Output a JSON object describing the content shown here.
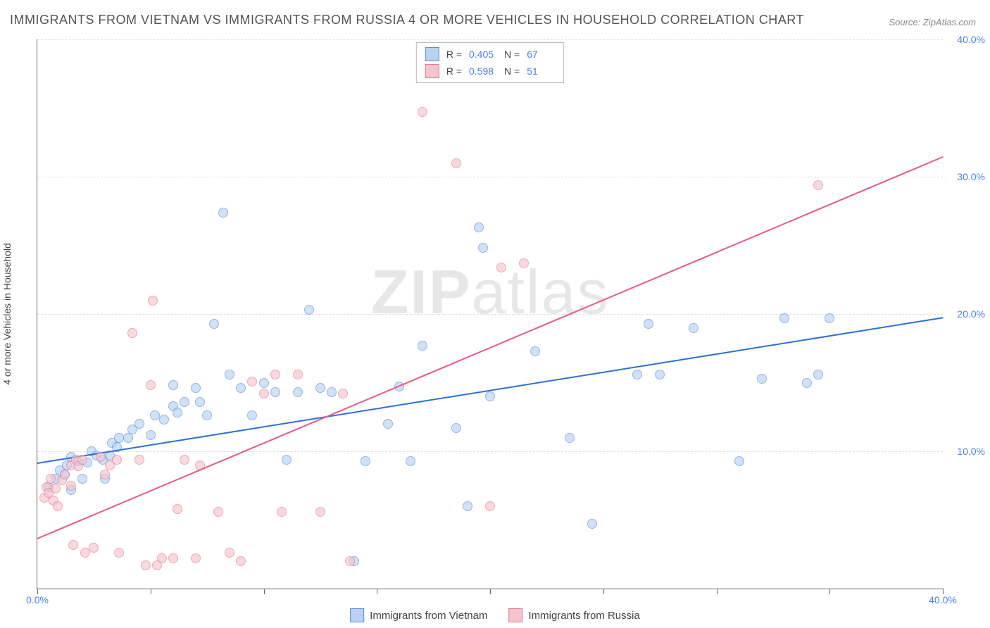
{
  "title": "IMMIGRANTS FROM VIETNAM VS IMMIGRANTS FROM RUSSIA 4 OR MORE VEHICLES IN HOUSEHOLD CORRELATION CHART",
  "source": "Source: ZipAtlas.com",
  "watermark_a": "ZIP",
  "watermark_b": "atlas",
  "ylabel": "4 or more Vehicles in Household",
  "chart": {
    "type": "scatter",
    "xlim": [
      0,
      40
    ],
    "ylim": [
      0,
      40
    ],
    "xticks": [
      0,
      5,
      10,
      15,
      20,
      25,
      30,
      35,
      40
    ],
    "xtick_labels": {
      "0": "0.0%",
      "40": "40.0%"
    },
    "yticks": [
      10,
      20,
      30,
      40
    ],
    "ytick_labels": {
      "10": "10.0%",
      "20": "20.0%",
      "30": "30.0%",
      "40": "40.0%"
    },
    "grid_color": "#dddddd",
    "background_color": "#ffffff"
  },
  "series": [
    {
      "key": "vietnam",
      "label": "Immigrants from Vietnam",
      "fill": "#b9d2f3",
      "stroke": "#5a8fd8",
      "line_color": "#2d6fd6",
      "R": "0.405",
      "N": "67",
      "regression": {
        "x1": 0,
        "y1": 9.2,
        "x2": 40,
        "y2": 19.8
      },
      "points": [
        [
          0.5,
          7.4
        ],
        [
          0.8,
          8.0
        ],
        [
          1.0,
          8.6
        ],
        [
          1.2,
          8.3
        ],
        [
          1.3,
          9.0
        ],
        [
          1.5,
          7.2
        ],
        [
          1.5,
          9.6
        ],
        [
          1.8,
          9.3
        ],
        [
          2.0,
          8.0
        ],
        [
          2.2,
          9.2
        ],
        [
          2.4,
          10.0
        ],
        [
          2.6,
          9.7
        ],
        [
          2.9,
          9.4
        ],
        [
          3.0,
          8.0
        ],
        [
          3.2,
          9.7
        ],
        [
          3.3,
          10.6
        ],
        [
          3.5,
          10.3
        ],
        [
          3.6,
          11.0
        ],
        [
          4.0,
          11.0
        ],
        [
          4.2,
          11.6
        ],
        [
          4.5,
          12.0
        ],
        [
          5.0,
          11.2
        ],
        [
          5.2,
          12.6
        ],
        [
          5.6,
          12.3
        ],
        [
          6.0,
          14.8
        ],
        [
          6.0,
          13.3
        ],
        [
          6.2,
          12.8
        ],
        [
          6.5,
          13.6
        ],
        [
          7.0,
          14.6
        ],
        [
          7.2,
          13.6
        ],
        [
          7.5,
          12.6
        ],
        [
          7.8,
          19.3
        ],
        [
          8.2,
          27.4
        ],
        [
          8.5,
          15.6
        ],
        [
          9.0,
          14.6
        ],
        [
          9.5,
          12.6
        ],
        [
          10.0,
          15.0
        ],
        [
          10.5,
          14.3
        ],
        [
          11.0,
          9.4
        ],
        [
          11.5,
          14.3
        ],
        [
          12.0,
          20.3
        ],
        [
          12.5,
          14.6
        ],
        [
          13.0,
          14.3
        ],
        [
          14.0,
          2.0
        ],
        [
          14.5,
          9.3
        ],
        [
          15.5,
          12.0
        ],
        [
          16.0,
          14.7
        ],
        [
          16.5,
          9.3
        ],
        [
          17.0,
          17.7
        ],
        [
          18.5,
          11.7
        ],
        [
          19.0,
          6.0
        ],
        [
          19.5,
          26.3
        ],
        [
          19.7,
          24.8
        ],
        [
          20.0,
          14.0
        ],
        [
          22.0,
          17.3
        ],
        [
          23.5,
          11.0
        ],
        [
          24.5,
          4.7
        ],
        [
          26.5,
          15.6
        ],
        [
          27.0,
          19.3
        ],
        [
          27.5,
          15.6
        ],
        [
          29.0,
          19.0
        ],
        [
          31.0,
          9.3
        ],
        [
          32.0,
          15.3
        ],
        [
          33.0,
          19.7
        ],
        [
          34.0,
          15.0
        ],
        [
          34.5,
          15.6
        ],
        [
          35.0,
          19.7
        ]
      ]
    },
    {
      "key": "russia",
      "label": "Immigrants from Russia",
      "fill": "#f6c4cf",
      "stroke": "#e27a93",
      "line_color": "#e85a82",
      "R": "0.598",
      "N": "51",
      "regression": {
        "x1": 0,
        "y1": 3.7,
        "x2": 40,
        "y2": 31.5
      },
      "points": [
        [
          0.3,
          6.6
        ],
        [
          0.4,
          7.4
        ],
        [
          0.5,
          7.0
        ],
        [
          0.6,
          8.0
        ],
        [
          0.7,
          6.4
        ],
        [
          0.8,
          7.3
        ],
        [
          0.9,
          6.0
        ],
        [
          1.1,
          7.9
        ],
        [
          1.2,
          8.3
        ],
        [
          1.5,
          9.0
        ],
        [
          1.5,
          7.5
        ],
        [
          1.6,
          3.2
        ],
        [
          1.7,
          9.4
        ],
        [
          1.8,
          8.9
        ],
        [
          2.0,
          9.4
        ],
        [
          2.1,
          2.6
        ],
        [
          2.5,
          3.0
        ],
        [
          2.8,
          9.6
        ],
        [
          3.0,
          8.3
        ],
        [
          3.2,
          9.0
        ],
        [
          3.5,
          9.4
        ],
        [
          3.6,
          2.6
        ],
        [
          4.2,
          18.6
        ],
        [
          4.5,
          9.4
        ],
        [
          4.8,
          1.7
        ],
        [
          5.0,
          14.8
        ],
        [
          5.1,
          21.0
        ],
        [
          5.3,
          1.7
        ],
        [
          5.5,
          2.2
        ],
        [
          6.0,
          2.2
        ],
        [
          6.2,
          5.8
        ],
        [
          6.5,
          9.4
        ],
        [
          7.0,
          2.2
        ],
        [
          7.2,
          9.0
        ],
        [
          8.0,
          5.6
        ],
        [
          8.5,
          2.6
        ],
        [
          9.0,
          2.0
        ],
        [
          9.5,
          15.1
        ],
        [
          10.0,
          14.2
        ],
        [
          10.5,
          15.6
        ],
        [
          10.8,
          5.6
        ],
        [
          11.5,
          15.6
        ],
        [
          12.5,
          5.6
        ],
        [
          13.5,
          14.2
        ],
        [
          13.8,
          2.0
        ],
        [
          17.0,
          34.7
        ],
        [
          18.5,
          31.0
        ],
        [
          20.0,
          6.0
        ],
        [
          20.5,
          23.4
        ],
        [
          21.5,
          23.7
        ],
        [
          34.5,
          29.4
        ]
      ]
    }
  ]
}
